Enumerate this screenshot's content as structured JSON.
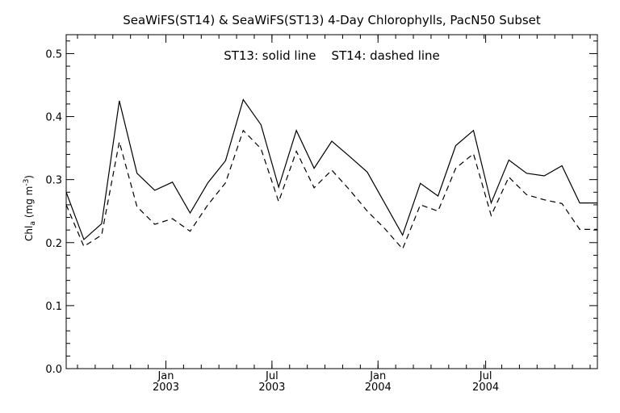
{
  "chart_data": {
    "type": "line",
    "title": "SeaWiFS(ST14) & SeaWiFS(ST13) 4-Day Chlorophylls, PacN50 Subset",
    "annotation": "ST13: solid line    ST14: dashed line",
    "ylabel_main": "Chl",
    "ylabel_sub": "a",
    "ylabel_unit": "(mg m",
    "ylabel_exp": "-3",
    "ylabel_close": ")",
    "xlim": [
      0,
      30
    ],
    "ylim": [
      0.0,
      0.53
    ],
    "yticks": [
      "0.0",
      "0.1",
      "0.2",
      "0.3",
      "0.4",
      "0.5"
    ],
    "ytick_values": [
      0.0,
      0.1,
      0.2,
      0.3,
      0.4,
      0.5
    ],
    "xticks": [
      {
        "month": "Jan",
        "year": "2003",
        "x": 5.63
      },
      {
        "month": "Jul",
        "year": "2003",
        "x": 11.62
      },
      {
        "month": "Jan",
        "year": "2004",
        "x": 17.61
      },
      {
        "month": "Jul",
        "year": "2004",
        "x": 23.69
      }
    ],
    "x": [
      0,
      1,
      2,
      3,
      4,
      5,
      6,
      7,
      8,
      9,
      10,
      11,
      12,
      13,
      14,
      15,
      16,
      17,
      18,
      19,
      20,
      21,
      22,
      23,
      24,
      25,
      26,
      27,
      28,
      29,
      30
    ],
    "series": [
      {
        "style": "solid",
        "values": [
          0.28,
          0.205,
          0.23,
          0.425,
          0.31,
          0.283,
          0.296,
          0.247,
          0.295,
          0.33,
          0.427,
          0.387,
          0.288,
          0.378,
          0.318,
          0.361,
          0.337,
          0.312,
          0.262,
          0.212,
          0.294,
          0.274,
          0.354,
          0.378,
          0.263,
          0.331,
          0.31,
          0.306,
          0.322,
          0.263,
          0.263
        ]
      },
      {
        "style": "dashed",
        "values": [
          0.26,
          0.194,
          0.212,
          0.36,
          0.257,
          0.229,
          0.238,
          0.218,
          0.26,
          0.295,
          0.378,
          0.349,
          0.265,
          0.345,
          0.287,
          0.315,
          0.284,
          0.25,
          0.222,
          0.19,
          0.26,
          0.25,
          0.318,
          0.341,
          0.243,
          0.304,
          0.276,
          0.268,
          0.262,
          0.221,
          0.221
        ]
      }
    ]
  }
}
